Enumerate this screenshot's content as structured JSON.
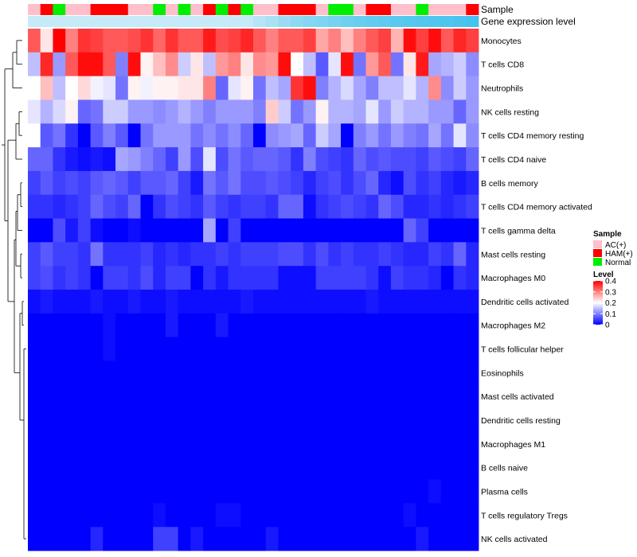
{
  "chart_data": {
    "type": "heatmap",
    "title": "",
    "rows": [
      "Monocytes",
      "T cells CD8",
      "Neutrophils",
      "NK cells resting",
      "T cells CD4 memory resting",
      "T cells CD4 naive",
      "B cells memory",
      "T cells CD4 memory activated",
      "T cells gamma delta",
      "Mast cells resting",
      "Macrophages M0",
      "Dendritic cells activated",
      "Macrophages M2",
      "T cells follicular helper",
      "Eosinophils",
      "Mast cells activated",
      "Dendritic cells resting",
      "Macrophages M1",
      "B cells naive",
      "Plasma cells",
      "T cells regulatory  Tregs",
      "NK cells activated"
    ],
    "annotation_labels": {
      "sample": "Sample",
      "gene": "Gene expression level"
    },
    "sample_groups": [
      "AC(+)",
      "HAM(+)",
      "Normal",
      "AC(+)",
      "AC(+)",
      "HAM(+)",
      "HAM(+)",
      "HAM(+)",
      "AC(+)",
      "AC(+)",
      "Normal",
      "AC(+)",
      "Normal",
      "AC(+)",
      "HAM(+)",
      "Normal",
      "HAM(+)",
      "Normal",
      "AC(+)",
      "AC(+)",
      "HAM(+)",
      "HAM(+)",
      "HAM(+)",
      "AC(+)",
      "Normal",
      "Normal",
      "AC(+)",
      "HAM(+)",
      "HAM(+)",
      "AC(+)",
      "AC(+)",
      "Normal",
      "AC(+)",
      "AC(+)",
      "AC(+)",
      "HAM(+)"
    ],
    "gene_expression_level": [
      0.1,
      0.1,
      0.1,
      0.1,
      0.1,
      0.1,
      0.1,
      0.1,
      0.1,
      0.1,
      0.1,
      0.1,
      0.1,
      0.1,
      0.1,
      0.1,
      0.1,
      0.1,
      0.2,
      0.3,
      0.4,
      0.5,
      0.55,
      0.6,
      0.65,
      0.7,
      0.75,
      0.8,
      0.82,
      0.85,
      0.88,
      0.9,
      0.92,
      0.94,
      0.96,
      1.0
    ],
    "values": [
      [
        0.33,
        0.22,
        0.4,
        0.3,
        0.36,
        0.35,
        0.33,
        0.33,
        0.34,
        0.36,
        0.32,
        0.36,
        0.33,
        0.33,
        0.38,
        0.34,
        0.35,
        0.37,
        0.33,
        0.3,
        0.33,
        0.33,
        0.35,
        0.27,
        0.3,
        0.25,
        0.3,
        0.33,
        0.35,
        0.26,
        0.39,
        0.35,
        0.39,
        0.33,
        0.37,
        0.35
      ],
      [
        0.15,
        0.37,
        0.12,
        0.33,
        0.39,
        0.39,
        0.33,
        0.1,
        0.39,
        0.21,
        0.25,
        0.29,
        0.16,
        0.22,
        0.15,
        0.28,
        0.3,
        0.22,
        0.29,
        0.28,
        0.39,
        0.2,
        0.15,
        0.07,
        0.18,
        0.39,
        0.09,
        0.28,
        0.33,
        0.09,
        0.22,
        0.38,
        0.13,
        0.14,
        0.16,
        0.11
      ],
      [
        0.2,
        0.25,
        0.15,
        0.2,
        0.23,
        0.19,
        0.18,
        0.09,
        0.21,
        0.19,
        0.21,
        0.21,
        0.22,
        0.22,
        0.3,
        0.08,
        0.18,
        0.21,
        0.09,
        0.15,
        0.13,
        0.36,
        0.39,
        0.1,
        0.14,
        0.17,
        0.13,
        0.1,
        0.15,
        0.15,
        0.18,
        0.14,
        0.29,
        0.11,
        0.16,
        0.12
      ],
      [
        0.18,
        0.14,
        0.17,
        0.21,
        0.08,
        0.09,
        0.16,
        0.16,
        0.12,
        0.12,
        0.11,
        0.12,
        0.14,
        0.12,
        0.1,
        0.12,
        0.12,
        0.12,
        0.1,
        0.24,
        0.16,
        0.09,
        0.12,
        0.21,
        0.14,
        0.14,
        0.13,
        0.18,
        0.12,
        0.16,
        0.14,
        0.14,
        0.12,
        0.12,
        0.08,
        0.12
      ],
      [
        0.2,
        0.07,
        0.09,
        0.04,
        0.0,
        0.07,
        0.1,
        0.07,
        0.0,
        0.09,
        0.12,
        0.12,
        0.12,
        0.09,
        0.11,
        0.09,
        0.11,
        0.08,
        0.0,
        0.11,
        0.12,
        0.13,
        0.08,
        0.16,
        0.13,
        0.0,
        0.1,
        0.12,
        0.09,
        0.12,
        0.1,
        0.09,
        0.13,
        0.09,
        0.18,
        0.11
      ],
      [
        0.08,
        0.08,
        0.04,
        0.02,
        0.01,
        0.02,
        0.01,
        0.13,
        0.12,
        0.1,
        0.08,
        0.05,
        0.12,
        0.06,
        0.18,
        0.06,
        0.09,
        0.07,
        0.08,
        0.08,
        0.07,
        0.04,
        0.1,
        0.06,
        0.05,
        0.04,
        0.08,
        0.06,
        0.07,
        0.06,
        0.06,
        0.05,
        0.07,
        0.06,
        0.05,
        0.08
      ],
      [
        0.05,
        0.07,
        0.05,
        0.06,
        0.05,
        0.07,
        0.08,
        0.07,
        0.05,
        0.07,
        0.07,
        0.08,
        0.05,
        0.02,
        0.09,
        0.07,
        0.09,
        0.06,
        0.06,
        0.07,
        0.06,
        0.05,
        0.03,
        0.05,
        0.06,
        0.04,
        0.06,
        0.08,
        0.03,
        0.01,
        0.06,
        0.04,
        0.05,
        0.03,
        0.02,
        0.03
      ],
      [
        0.04,
        0.04,
        0.03,
        0.04,
        0.05,
        0.08,
        0.06,
        0.05,
        0.08,
        0.0,
        0.04,
        0.06,
        0.05,
        0.04,
        0.07,
        0.05,
        0.04,
        0.05,
        0.05,
        0.04,
        0.08,
        0.08,
        0.01,
        0.04,
        0.05,
        0.06,
        0.05,
        0.04,
        0.08,
        0.06,
        0.03,
        0.03,
        0.04,
        0.03,
        0.04,
        0.05
      ],
      [
        0.0,
        0.0,
        0.06,
        0.02,
        0.05,
        0.01,
        0.0,
        0.0,
        0.01,
        0.0,
        0.0,
        0.0,
        0.0,
        0.0,
        0.13,
        0.0,
        0.05,
        0.0,
        0.0,
        0.0,
        0.0,
        0.0,
        0.0,
        0.0,
        0.0,
        0.0,
        0.0,
        0.0,
        0.0,
        0.0,
        0.08,
        0.05,
        0.0,
        0.0,
        0.0,
        0.0
      ],
      [
        0.05,
        0.07,
        0.05,
        0.05,
        0.04,
        0.09,
        0.04,
        0.04,
        0.04,
        0.05,
        0.03,
        0.04,
        0.03,
        0.04,
        0.04,
        0.05,
        0.04,
        0.05,
        0.05,
        0.05,
        0.06,
        0.06,
        0.04,
        0.06,
        0.04,
        0.05,
        0.04,
        0.04,
        0.05,
        0.04,
        0.03,
        0.03,
        0.05,
        0.04,
        0.08,
        0.03
      ],
      [
        0.05,
        0.06,
        0.04,
        0.05,
        0.04,
        0.0,
        0.05,
        0.05,
        0.04,
        0.06,
        0.03,
        0.05,
        0.05,
        0.0,
        0.04,
        0.02,
        0.04,
        0.04,
        0.04,
        0.04,
        0.01,
        0.01,
        0.01,
        0.05,
        0.05,
        0.05,
        0.05,
        0.04,
        0.01,
        0.05,
        0.04,
        0.04,
        0.03,
        0.0,
        0.04,
        0.03
      ],
      [
        0.01,
        0.02,
        0.01,
        0.01,
        0.01,
        0.02,
        0.01,
        0.01,
        0.02,
        0.01,
        0.01,
        0.02,
        0.01,
        0.01,
        0.01,
        0.01,
        0.01,
        0.02,
        0.01,
        0.01,
        0.01,
        0.01,
        0.01,
        0.01,
        0.01,
        0.01,
        0.01,
        0.02,
        0.01,
        0.01,
        0.01,
        0.01,
        0.01,
        0.01,
        0.01,
        0.01
      ],
      [
        0.0,
        0.0,
        0.0,
        0.0,
        0.0,
        0.0,
        0.01,
        0.0,
        0.0,
        0.0,
        0.0,
        0.02,
        0.0,
        0.0,
        0.0,
        0.02,
        0.0,
        0.0,
        0.0,
        0.0,
        0.0,
        0.0,
        0.0,
        0.0,
        0.0,
        0.0,
        0.0,
        0.0,
        0.0,
        0.0,
        0.0,
        0.0,
        0.0,
        0.0,
        0.0,
        0.0
      ],
      [
        0.0,
        0.0,
        0.0,
        0.0,
        0.0,
        0.0,
        0.01,
        0.0,
        0.0,
        0.0,
        0.0,
        0.0,
        0.0,
        0.0,
        0.0,
        0.0,
        0.0,
        0.0,
        0.0,
        0.0,
        0.0,
        0.0,
        0.0,
        0.0,
        0.0,
        0.0,
        0.0,
        0.0,
        0.0,
        0.0,
        0.0,
        0.0,
        0.0,
        0.0,
        0.0,
        0.0
      ],
      [
        0,
        0,
        0,
        0,
        0,
        0,
        0,
        0,
        0,
        0,
        0,
        0,
        0,
        0,
        0,
        0,
        0,
        0,
        0,
        0,
        0,
        0,
        0,
        0,
        0,
        0,
        0,
        0,
        0,
        0,
        0,
        0,
        0,
        0,
        0,
        0
      ],
      [
        0,
        0,
        0,
        0,
        0,
        0,
        0,
        0,
        0,
        0,
        0,
        0,
        0,
        0,
        0,
        0,
        0,
        0,
        0,
        0,
        0,
        0,
        0,
        0,
        0,
        0,
        0,
        0,
        0,
        0,
        0,
        0,
        0,
        0,
        0,
        0
      ],
      [
        0,
        0,
        0,
        0,
        0,
        0,
        0,
        0,
        0,
        0,
        0,
        0,
        0,
        0,
        0,
        0,
        0,
        0,
        0,
        0,
        0,
        0,
        0,
        0,
        0,
        0,
        0,
        0,
        0,
        0,
        0,
        0,
        0,
        0,
        0,
        0
      ],
      [
        0,
        0,
        0,
        0,
        0,
        0,
        0,
        0,
        0,
        0,
        0,
        0,
        0,
        0,
        0,
        0,
        0,
        0,
        0,
        0,
        0,
        0,
        0,
        0,
        0,
        0,
        0,
        0,
        0,
        0,
        0,
        0,
        0,
        0,
        0,
        0
      ],
      [
        0,
        0,
        0,
        0,
        0,
        0,
        0,
        0,
        0,
        0,
        0,
        0,
        0,
        0,
        0,
        0,
        0,
        0,
        0,
        0,
        0,
        0,
        0,
        0,
        0,
        0,
        0,
        0,
        0,
        0,
        0,
        0,
        0,
        0,
        0,
        0
      ],
      [
        0.0,
        0.0,
        0.0,
        0.0,
        0.0,
        0.0,
        0.0,
        0.0,
        0.0,
        0.0,
        0.0,
        0.0,
        0.0,
        0.0,
        0.0,
        0.0,
        0.0,
        0.0,
        0.0,
        0.0,
        0.0,
        0.0,
        0.0,
        0.0,
        0.0,
        0.0,
        0.0,
        0.0,
        0.0,
        0.0,
        0.0,
        0.0,
        0.01,
        0.0,
        0.0,
        0.0
      ],
      [
        0.0,
        0.0,
        0.0,
        0.0,
        0.0,
        0.0,
        0.0,
        0.0,
        0.0,
        0.0,
        0.01,
        0.0,
        0.0,
        0.0,
        0.0,
        0.01,
        0.01,
        0.0,
        0.0,
        0.0,
        0.0,
        0.0,
        0.0,
        0.0,
        0.0,
        0.0,
        0.0,
        0.0,
        0.0,
        0.0,
        0.01,
        0.0,
        0.0,
        0.0,
        0.0,
        0.0
      ],
      [
        0.0,
        0.0,
        0.0,
        0.0,
        0.0,
        0.03,
        0.0,
        0.0,
        0.0,
        0.0,
        0.05,
        0.05,
        0.0,
        0.02,
        0.0,
        0.0,
        0.0,
        0.0,
        0.0,
        0.02,
        0.0,
        0.0,
        0.0,
        0.0,
        0.0,
        0.0,
        0.0,
        0.0,
        0.0,
        0.0,
        0.0,
        0.02,
        0.0,
        0.0,
        0.0,
        0.0
      ]
    ],
    "color_scale": {
      "min": 0,
      "max": 0.4,
      "low": "#0000ff",
      "mid": "#ffffff",
      "high": "#ff0000"
    },
    "legend": {
      "position": "right",
      "sample_title": "Sample",
      "sample_entries": [
        {
          "label": "AC(+)",
          "color": "#ffc0cb"
        },
        {
          "label": "HAM(+)",
          "color": "#ff0000"
        },
        {
          "label": "Normal",
          "color": "#00ee00"
        }
      ],
      "level_title": "Level",
      "level_ticks": [
        {
          "value": 0.4,
          "label": "0.4"
        },
        {
          "value": 0.3,
          "label": "0.3"
        },
        {
          "value": 0.2,
          "label": "0.2"
        },
        {
          "value": 0.1,
          "label": "0.1"
        },
        {
          "value": 0,
          "label": "0"
        }
      ]
    },
    "colors": {
      "gene_low": "#d4eef9",
      "gene_high": "#45c2ed"
    }
  }
}
